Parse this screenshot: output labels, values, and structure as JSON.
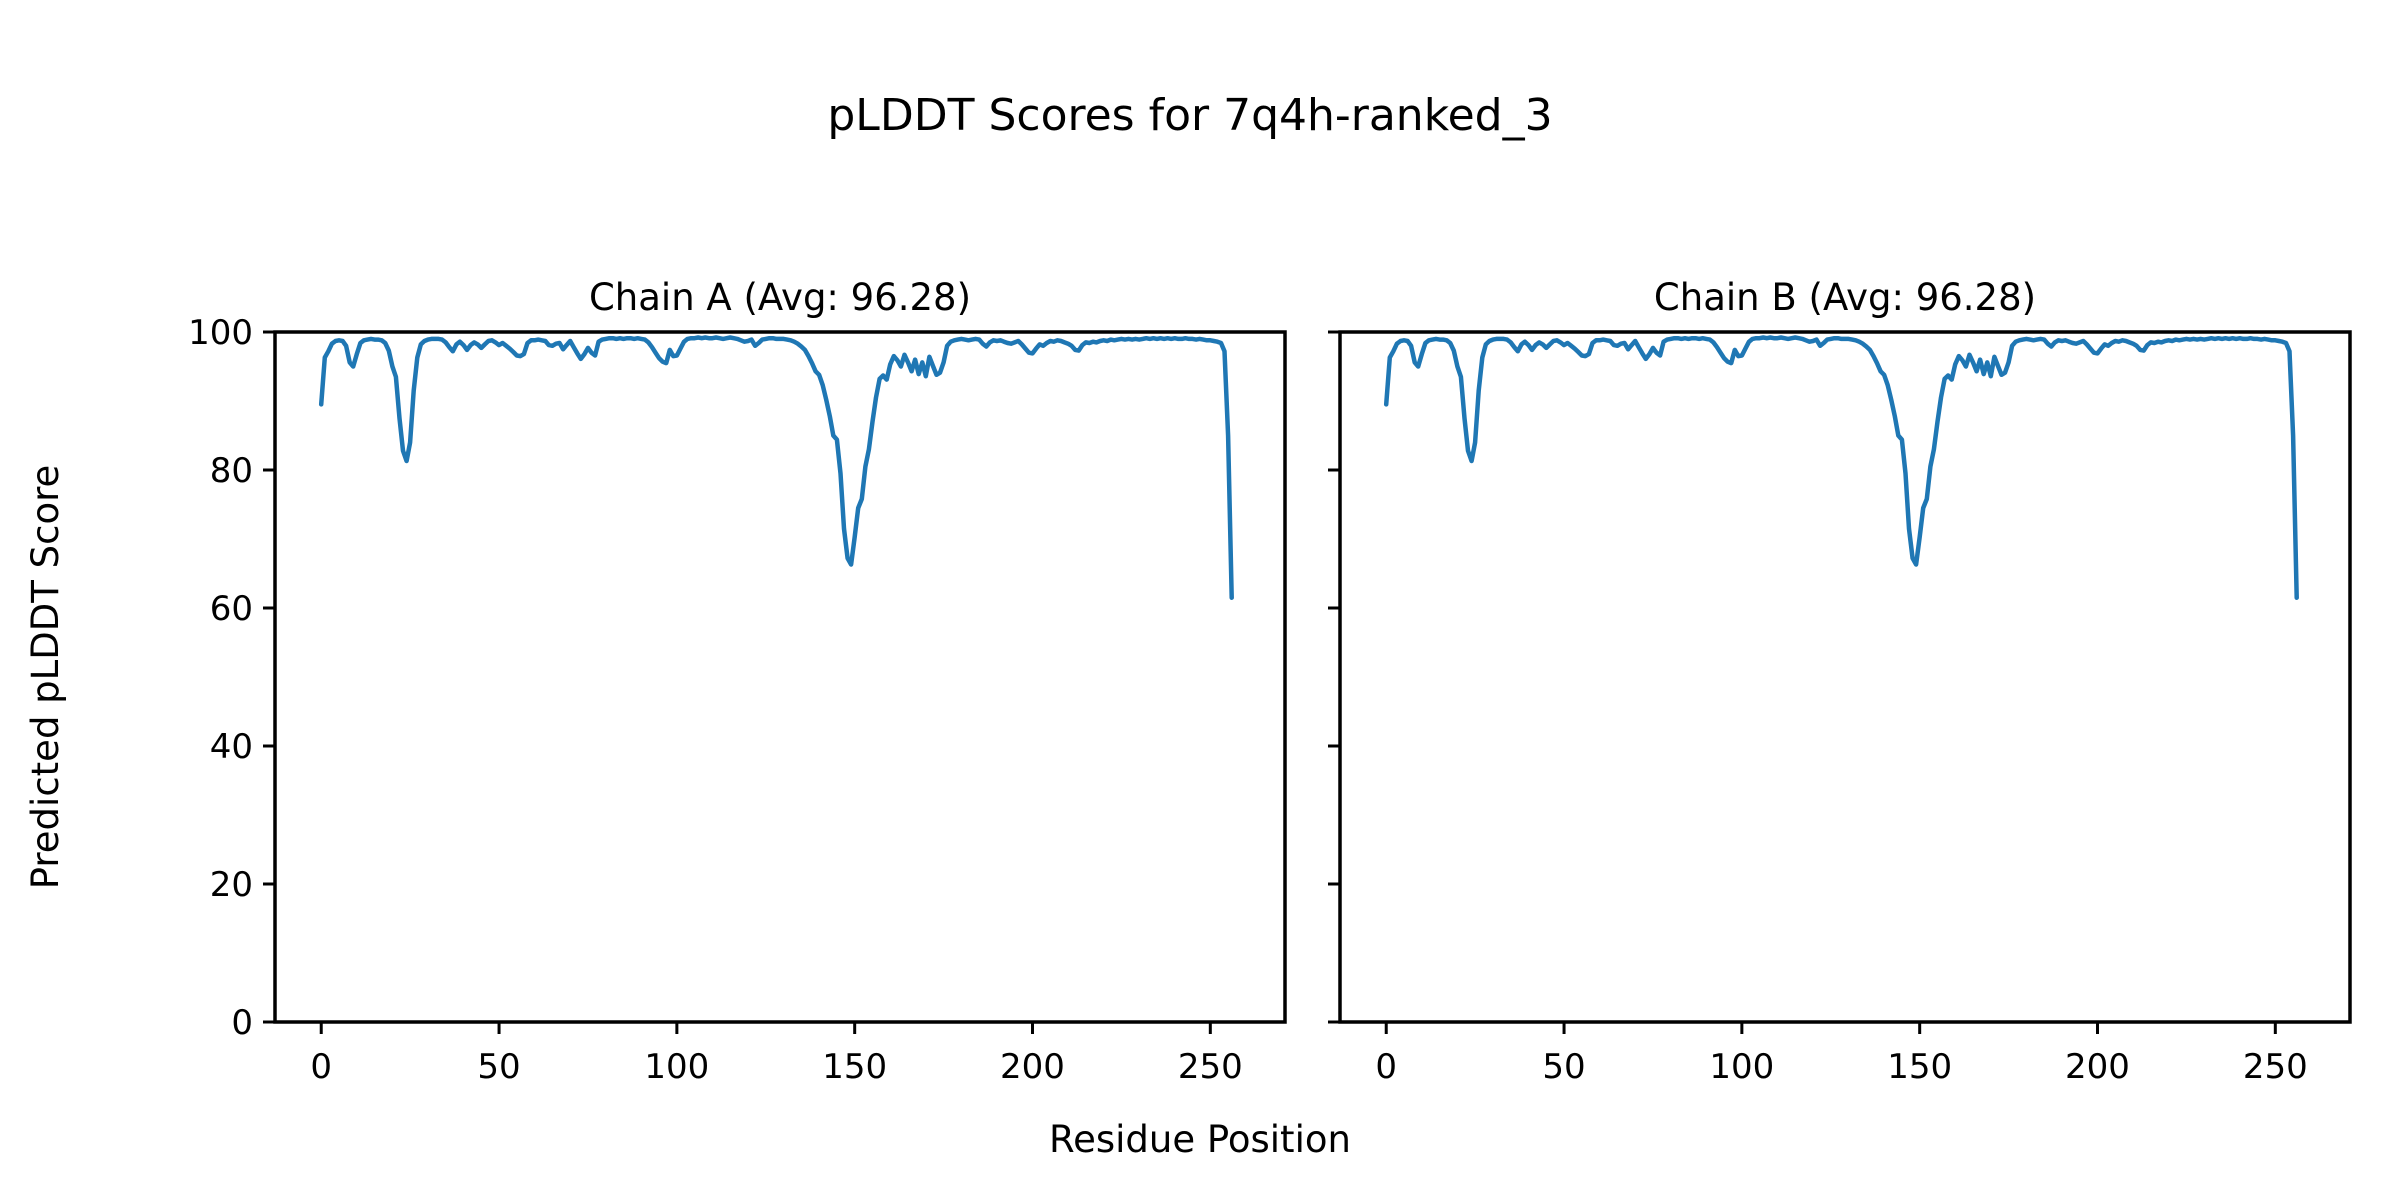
{
  "figure": {
    "title": "pLDDT Scores for 7q4h-ranked_3",
    "xlabel": "Residue Position",
    "ylabel": "Predicted pLDDT Score",
    "background_color": "#ffffff",
    "text_color": "#000000"
  },
  "chart_data": {
    "type": "line",
    "line_color": "#1f77b4",
    "grid": false,
    "legend_position": "none",
    "x_is_index": true,
    "xlim": [
      -13,
      271
    ],
    "ylim": [
      0,
      100
    ],
    "x_ticks": [
      0,
      50,
      100,
      150,
      200,
      250
    ],
    "y_ticks": [
      0,
      20,
      40,
      60,
      80,
      100
    ],
    "charts": [
      {
        "title": "Chain A (Avg: 96.28)",
        "avg": 96.28,
        "values": [
          89.5,
          96.3,
          97.2,
          98.3,
          98.7,
          98.8,
          98.7,
          98.0,
          95.6,
          95.0,
          96.8,
          98.4,
          98.8,
          98.9,
          99.0,
          98.9,
          98.9,
          98.8,
          98.4,
          97.3,
          95.0,
          93.5,
          87.5,
          82.8,
          81.3,
          84.0,
          91.5,
          96.3,
          98.2,
          98.7,
          98.9,
          99.0,
          99.0,
          99.0,
          98.9,
          98.5,
          97.8,
          97.2,
          98.2,
          98.6,
          98.1,
          97.4,
          98.1,
          98.5,
          98.2,
          97.7,
          98.2,
          98.7,
          98.8,
          98.5,
          98.1,
          98.4,
          98.0,
          97.6,
          97.1,
          96.6,
          96.5,
          96.8,
          98.4,
          98.8,
          98.8,
          98.9,
          98.8,
          98.7,
          98.1,
          98.0,
          98.3,
          98.4,
          97.5,
          98.1,
          98.7,
          97.8,
          96.9,
          96.1,
          96.8,
          97.7,
          97.0,
          96.6,
          98.6,
          98.9,
          99.0,
          99.1,
          99.1,
          99.0,
          99.1,
          99.0,
          99.1,
          99.1,
          99.0,
          99.1,
          99.0,
          98.9,
          98.5,
          97.8,
          97.0,
          96.2,
          95.7,
          95.5,
          97.4,
          96.5,
          96.6,
          97.6,
          98.6,
          99.0,
          99.1,
          99.1,
          99.2,
          99.1,
          99.2,
          99.1,
          99.1,
          99.2,
          99.1,
          99.0,
          99.1,
          99.2,
          99.1,
          99.0,
          98.8,
          98.6,
          98.7,
          98.9,
          98.0,
          98.4,
          98.9,
          99.0,
          99.1,
          99.1,
          99.0,
          99.0,
          99.0,
          98.9,
          98.8,
          98.6,
          98.3,
          97.9,
          97.4,
          96.5,
          95.5,
          94.3,
          93.8,
          92.3,
          90.2,
          87.8,
          85.0,
          84.4,
          79.5,
          71.5,
          67.2,
          66.3,
          70.3,
          74.5,
          75.8,
          80.5,
          83.0,
          87.0,
          90.5,
          93.2,
          93.7,
          93.1,
          95.3,
          96.5,
          95.9,
          95.0,
          96.7,
          95.6,
          94.3,
          96.0,
          93.9,
          95.6,
          93.6,
          96.4,
          95.1,
          93.8,
          94.1,
          95.6,
          98.0,
          98.6,
          98.8,
          98.9,
          99.0,
          98.9,
          98.8,
          98.9,
          99.0,
          98.9,
          98.3,
          97.9,
          98.5,
          98.8,
          98.7,
          98.8,
          98.6,
          98.4,
          98.3,
          98.5,
          98.7,
          98.2,
          97.6,
          97.0,
          96.9,
          97.6,
          98.2,
          98.0,
          98.4,
          98.7,
          98.6,
          98.8,
          98.7,
          98.5,
          98.3,
          98.0,
          97.4,
          97.3,
          98.1,
          98.5,
          98.4,
          98.6,
          98.5,
          98.7,
          98.8,
          98.7,
          98.9,
          98.8,
          98.9,
          99.0,
          98.9,
          99.0,
          98.9,
          99.0,
          98.9,
          99.0,
          99.1,
          99.0,
          99.1,
          99.0,
          99.1,
          99.0,
          99.1,
          99.0,
          99.1,
          99.0,
          99.0,
          99.1,
          99.0,
          99.0,
          98.9,
          99.0,
          98.9,
          98.8,
          98.8,
          98.7,
          98.6,
          98.4,
          97.2,
          85.0,
          61.5
        ]
      },
      {
        "title": "Chain B (Avg: 96.28)",
        "avg": 96.28,
        "values": [
          89.5,
          96.3,
          97.2,
          98.3,
          98.7,
          98.8,
          98.7,
          98.0,
          95.6,
          95.0,
          96.8,
          98.4,
          98.8,
          98.9,
          99.0,
          98.9,
          98.9,
          98.8,
          98.4,
          97.3,
          95.0,
          93.5,
          87.5,
          82.8,
          81.3,
          84.0,
          91.5,
          96.3,
          98.2,
          98.7,
          98.9,
          99.0,
          99.0,
          99.0,
          98.9,
          98.5,
          97.8,
          97.2,
          98.2,
          98.6,
          98.1,
          97.4,
          98.1,
          98.5,
          98.2,
          97.7,
          98.2,
          98.7,
          98.8,
          98.5,
          98.1,
          98.4,
          98.0,
          97.6,
          97.1,
          96.6,
          96.5,
          96.8,
          98.4,
          98.8,
          98.8,
          98.9,
          98.8,
          98.7,
          98.1,
          98.0,
          98.3,
          98.4,
          97.5,
          98.1,
          98.7,
          97.8,
          96.9,
          96.1,
          96.8,
          97.7,
          97.0,
          96.6,
          98.6,
          98.9,
          99.0,
          99.1,
          99.1,
          99.0,
          99.1,
          99.0,
          99.1,
          99.1,
          99.0,
          99.1,
          99.0,
          98.9,
          98.5,
          97.8,
          97.0,
          96.2,
          95.7,
          95.5,
          97.4,
          96.5,
          96.6,
          97.6,
          98.6,
          99.0,
          99.1,
          99.1,
          99.2,
          99.1,
          99.2,
          99.1,
          99.1,
          99.2,
          99.1,
          99.0,
          99.1,
          99.2,
          99.1,
          99.0,
          98.8,
          98.6,
          98.7,
          98.9,
          98.0,
          98.4,
          98.9,
          99.0,
          99.1,
          99.1,
          99.0,
          99.0,
          99.0,
          98.9,
          98.8,
          98.6,
          98.3,
          97.9,
          97.4,
          96.5,
          95.5,
          94.3,
          93.8,
          92.3,
          90.2,
          87.8,
          85.0,
          84.4,
          79.5,
          71.5,
          67.2,
          66.3,
          70.3,
          74.5,
          75.8,
          80.5,
          83.0,
          87.0,
          90.5,
          93.2,
          93.7,
          93.1,
          95.3,
          96.5,
          95.9,
          95.0,
          96.7,
          95.6,
          94.3,
          96.0,
          93.9,
          95.6,
          93.6,
          96.4,
          95.1,
          93.8,
          94.1,
          95.6,
          98.0,
          98.6,
          98.8,
          98.9,
          99.0,
          98.9,
          98.8,
          98.9,
          99.0,
          98.9,
          98.3,
          97.9,
          98.5,
          98.8,
          98.7,
          98.8,
          98.6,
          98.4,
          98.3,
          98.5,
          98.7,
          98.2,
          97.6,
          97.0,
          96.9,
          97.6,
          98.2,
          98.0,
          98.4,
          98.7,
          98.6,
          98.8,
          98.7,
          98.5,
          98.3,
          98.0,
          97.4,
          97.3,
          98.1,
          98.5,
          98.4,
          98.6,
          98.5,
          98.7,
          98.8,
          98.7,
          98.9,
          98.8,
          98.9,
          99.0,
          98.9,
          99.0,
          98.9,
          99.0,
          98.9,
          99.0,
          99.1,
          99.0,
          99.1,
          99.0,
          99.1,
          99.0,
          99.1,
          99.0,
          99.1,
          99.0,
          99.0,
          99.1,
          99.0,
          99.0,
          98.9,
          99.0,
          98.9,
          98.8,
          98.8,
          98.7,
          98.6,
          98.4,
          97.2,
          85.0,
          61.5
        ]
      }
    ]
  }
}
